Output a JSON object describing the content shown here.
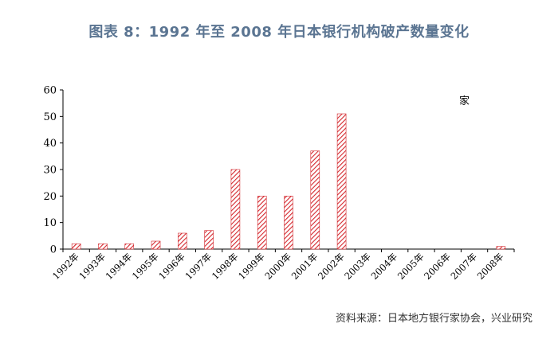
{
  "title": "图表 8：1992 年至 2008 年日本银行机构破产数量变化",
  "source": "资料来源：日本地方银行家协会，兴业研究",
  "colors": {
    "title": "#5b7592",
    "bar_stroke": "#d4282e",
    "axis": "#000000"
  },
  "chart_data": {
    "type": "bar",
    "categories": [
      "1992年",
      "1993年",
      "1994年",
      "1995年",
      "1996年",
      "1997年",
      "1998年",
      "1999年",
      "2000年",
      "2001年",
      "2002年",
      "2003年",
      "2004年",
      "2005年",
      "2006年",
      "2007年",
      "2008年"
    ],
    "values": [
      2,
      2,
      2,
      3,
      6,
      7,
      30,
      20,
      20,
      37,
      51,
      0,
      0,
      0,
      0,
      0,
      1
    ],
    "ylim": [
      0,
      60
    ],
    "yticks": [
      0,
      10,
      20,
      30,
      40,
      50,
      60
    ],
    "legend_text": "家",
    "grid": false
  }
}
